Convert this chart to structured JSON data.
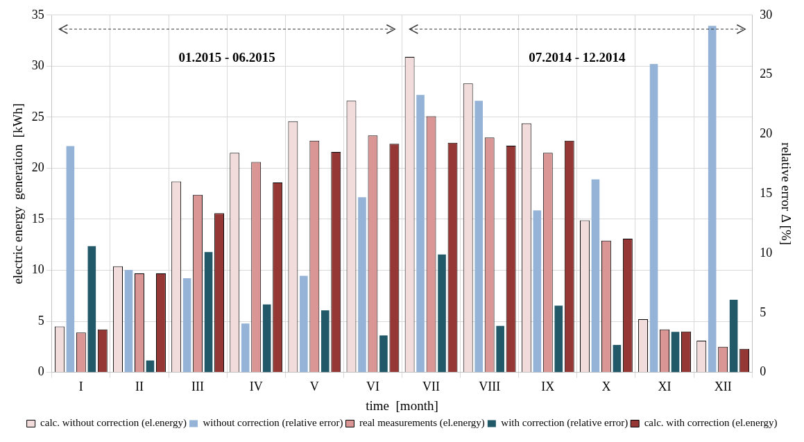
{
  "chart_data": {
    "type": "bar",
    "xlabel": "time  [month]",
    "ylabel": "electric energy  generation  [kWh]",
    "y2label": "relative error Δ [%]",
    "categories": [
      "I",
      "II",
      "III",
      "IV",
      "V",
      "VI",
      "VII",
      "VIII",
      "IX",
      "X",
      "XI",
      "XII"
    ],
    "series": [
      {
        "name": "calc. without correction (el.energy)",
        "color": "#f2dcdb",
        "values": [
          4.5,
          10.4,
          18.7,
          21.5,
          24.6,
          26.6,
          30.9,
          28.3,
          24.4,
          14.9,
          5.2,
          3.1
        ]
      },
      {
        "name": "without correction (relative error)",
        "color": "#95b3d7",
        "axis": "y2",
        "values": [
          19.0,
          8.6,
          7.9,
          4.1,
          8.1,
          14.7,
          23.3,
          22.8,
          13.6,
          16.2,
          25.9,
          29.1
        ]
      },
      {
        "name": "real measurements (el.energy)",
        "color": "#d99694",
        "values": [
          3.9,
          9.7,
          17.4,
          20.6,
          22.7,
          23.2,
          25.1,
          23.0,
          21.5,
          12.9,
          4.2,
          2.5
        ]
      },
      {
        "name": "with correction (relative error)",
        "color": "#215968",
        "axis": "y2",
        "values": [
          10.6,
          1.0,
          10.1,
          5.7,
          5.2,
          3.1,
          9.9,
          3.9,
          5.6,
          2.3,
          3.4,
          6.1
        ]
      },
      {
        "name": "calc. with correction (el.energy)",
        "color": "#953735",
        "values": [
          4.2,
          9.7,
          15.6,
          18.6,
          21.6,
          22.4,
          22.5,
          22.2,
          22.7,
          13.1,
          4.0,
          2.3
        ]
      }
    ],
    "ylim": [
      0,
      35
    ],
    "yticks": [
      0,
      5,
      10,
      15,
      20,
      25,
      30,
      35
    ],
    "y2lim": [
      0,
      30
    ],
    "y2ticks": [
      0,
      5,
      10,
      15,
      20,
      25,
      30
    ],
    "annotations": [
      "01.2015 - 06.2015",
      "07.2014 - 12.2014"
    ],
    "grid": true,
    "legend": "bottom"
  }
}
